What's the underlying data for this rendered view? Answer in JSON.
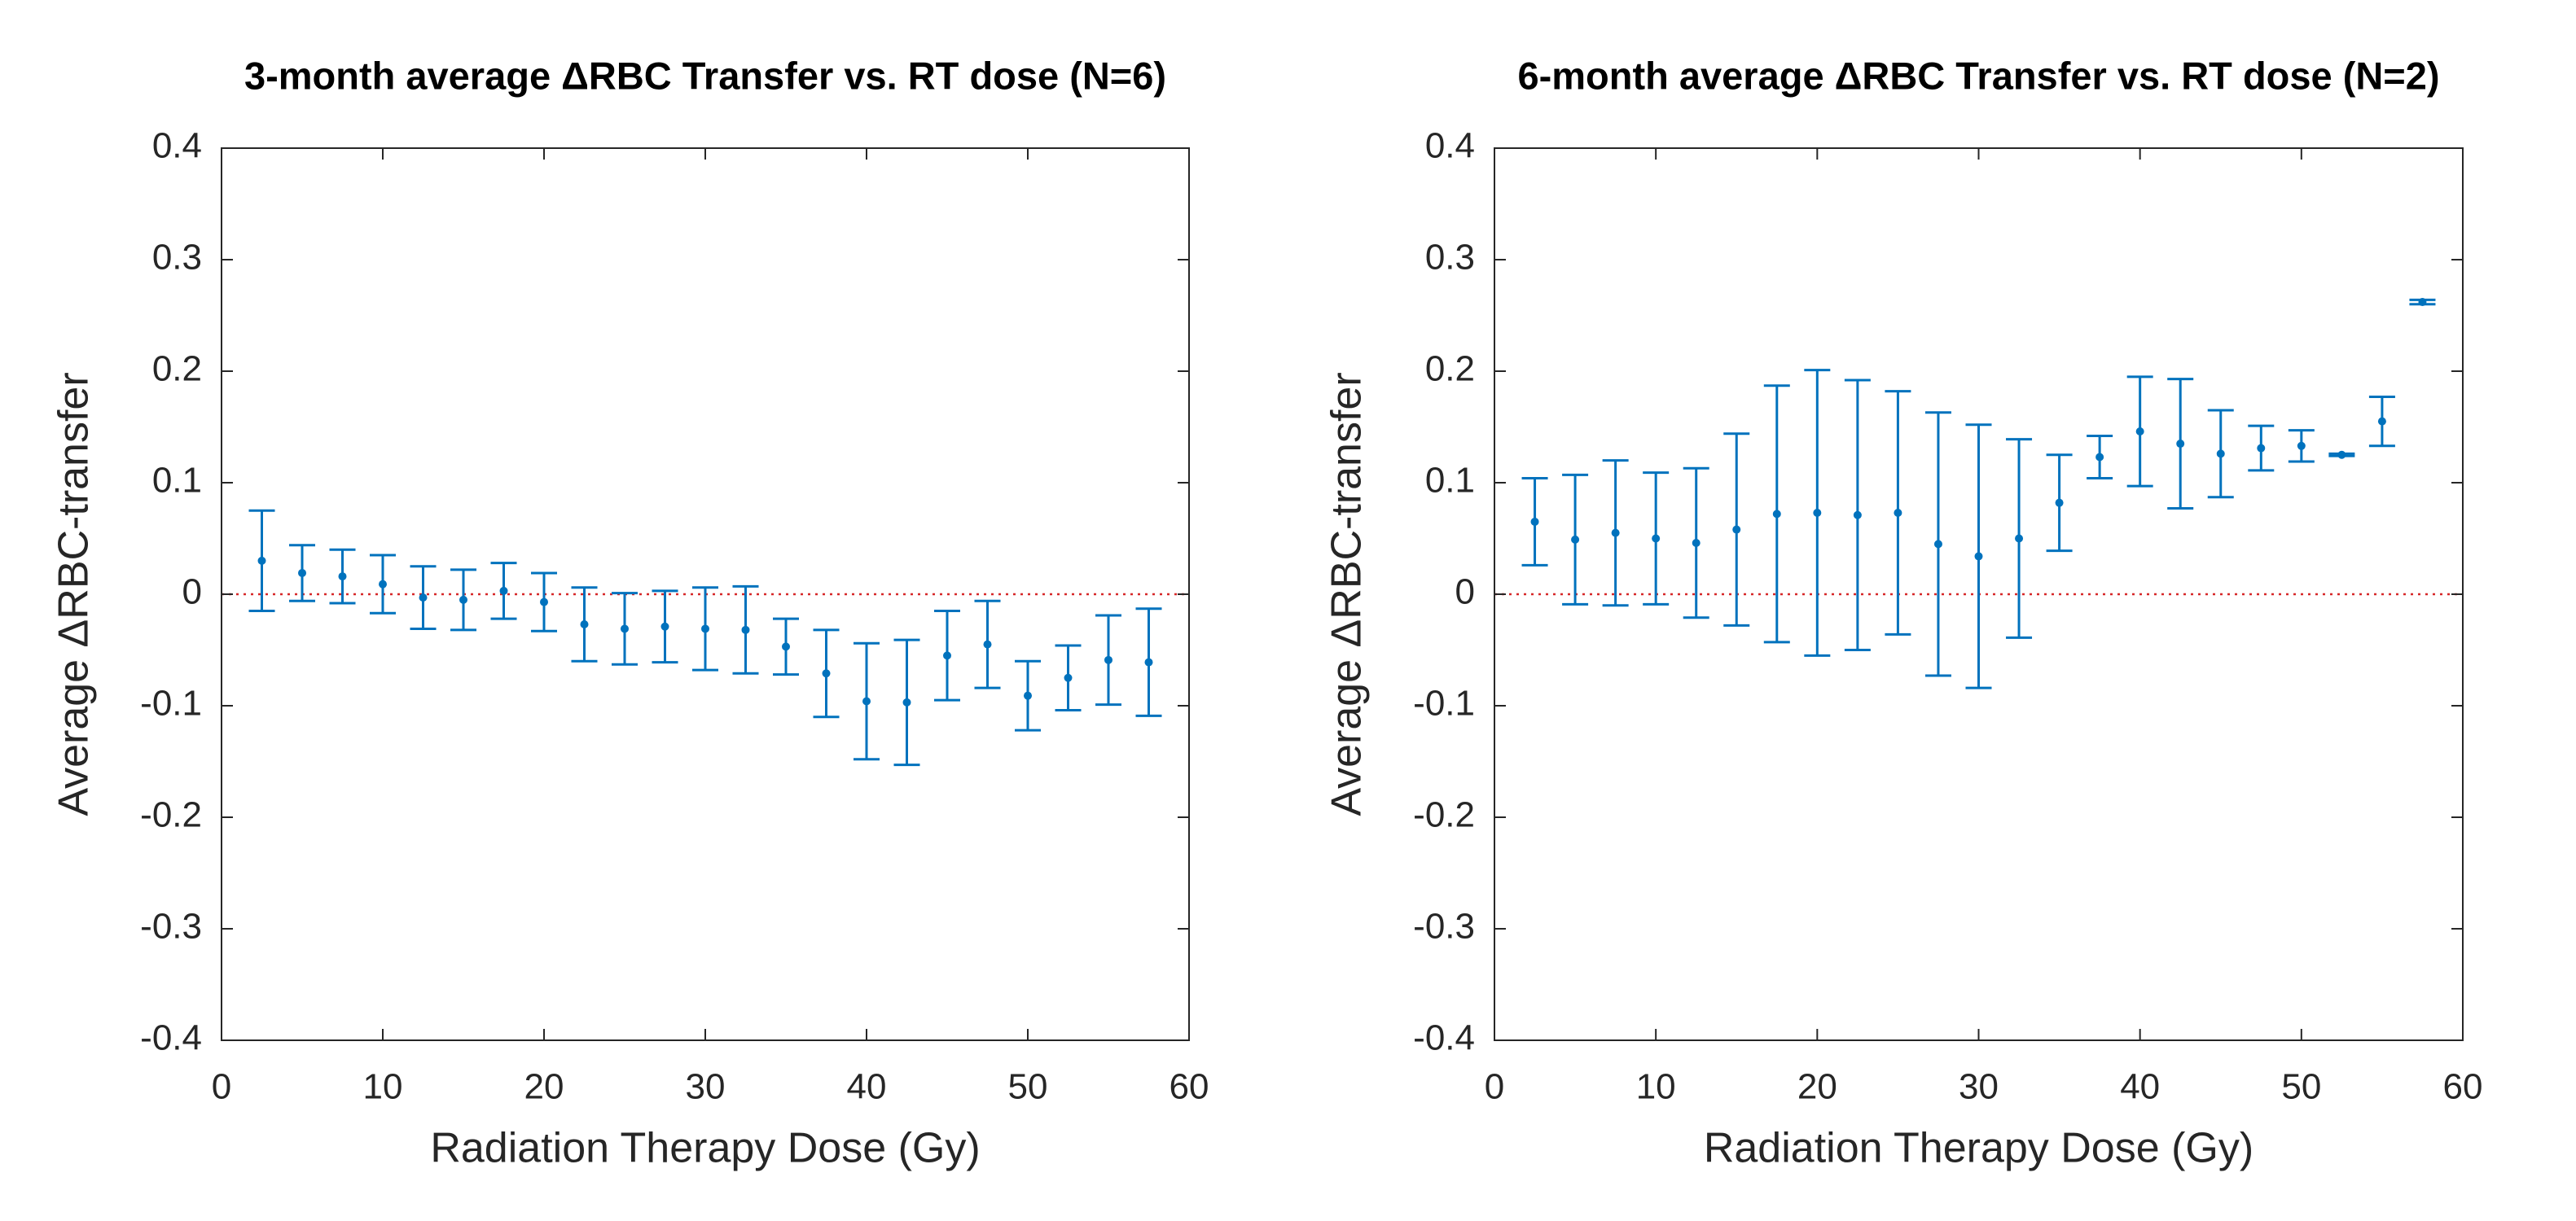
{
  "chart_data": [
    {
      "type": "errorbar",
      "title": "3-month average ΔRBC Transfer vs. RT dose (N=6)",
      "x_label": "Radiation Therapy Dose (Gy)",
      "y_label": "Average ΔRBC-transfer",
      "x": [
        2.5,
        5,
        7.5,
        10,
        12.5,
        15,
        17.5,
        20,
        22.5,
        25,
        27.5,
        30,
        32.5,
        35,
        37.5,
        40,
        42.5,
        45,
        47.5,
        50,
        52.5,
        55,
        57.5
      ],
      "series": [
        {
          "color": "#0072bd",
          "values": [
            0.03,
            0.019,
            0.016,
            0.009,
            -0.003,
            -0.005,
            0.003,
            -0.007,
            -0.027,
            -0.031,
            -0.029,
            -0.031,
            -0.032,
            -0.047,
            -0.071,
            -0.096,
            -0.097,
            -0.055,
            -0.045,
            -0.091,
            -0.075,
            -0.059,
            -0.061
          ],
          "errors": [
            0.045,
            0.025,
            0.024,
            0.026,
            0.028,
            0.027,
            0.025,
            0.026,
            0.033,
            0.032,
            0.032,
            0.037,
            0.039,
            0.025,
            0.039,
            0.052,
            0.056,
            0.04,
            0.039,
            0.031,
            0.029,
            0.04,
            0.048
          ]
        }
      ],
      "reference_line": {
        "value": 0,
        "color": "#d62728"
      },
      "xlim": [
        0,
        60
      ],
      "xticks": [
        0,
        10,
        20,
        30,
        40,
        50,
        60
      ],
      "ylim": [
        -0.4,
        0.4
      ],
      "yticks": [
        -0.4,
        -0.3,
        -0.2,
        -0.1,
        0,
        0.1,
        0.2,
        0.3,
        0.4
      ]
    },
    {
      "type": "errorbar",
      "title": "6-month average ΔRBC Transfer vs. RT dose (N=2)",
      "x_label": "Radiation Therapy Dose (Gy)",
      "y_label": "Average ΔRBC-transfer",
      "x": [
        2.5,
        5,
        7.5,
        10,
        12.5,
        15,
        17.5,
        20,
        22.5,
        25,
        27.5,
        30,
        32.5,
        35,
        37.5,
        40,
        42.5,
        45,
        47.5,
        50,
        52.5,
        55,
        57.5
      ],
      "series": [
        {
          "color": "#0072bd",
          "values": [
            0.065,
            0.049,
            0.055,
            0.05,
            0.046,
            0.058,
            0.072,
            0.073,
            0.071,
            0.073,
            0.045,
            0.034,
            0.05,
            0.082,
            0.123,
            0.146,
            0.135,
            0.126,
            0.131,
            0.133,
            0.125,
            0.155,
            0.262
          ],
          "errors": [
            0.039,
            0.058,
            0.065,
            0.059,
            0.067,
            0.086,
            0.115,
            0.128,
            0.121,
            0.109,
            0.118,
            0.118,
            0.089,
            0.043,
            0.019,
            0.049,
            0.058,
            0.039,
            0.02,
            0.014,
            0.001,
            0.022,
            0.002
          ]
        }
      ],
      "reference_line": {
        "value": 0,
        "color": "#d62728"
      },
      "xlim": [
        0,
        60
      ],
      "xticks": [
        0,
        10,
        20,
        30,
        40,
        50,
        60
      ],
      "ylim": [
        -0.4,
        0.4
      ],
      "yticks": [
        -0.4,
        -0.3,
        -0.2,
        -0.1,
        0,
        0.1,
        0.2,
        0.3,
        0.4
      ]
    }
  ]
}
